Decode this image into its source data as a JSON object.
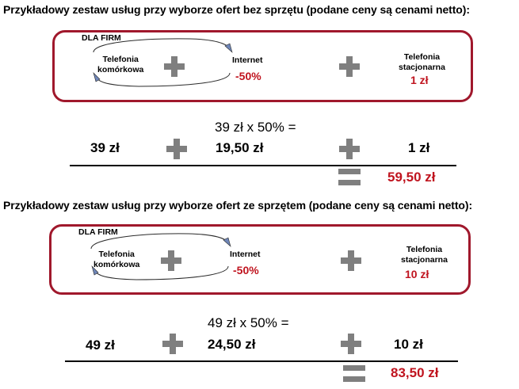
{
  "sections": [
    {
      "heading": "Przykładowy zestaw usług przy wyborze ofert bez sprzętu (podane ceny są cenami netto):",
      "badge": "DLA FIRM",
      "mobile_label_1": "Telefonia",
      "mobile_label_2": "komórkowa",
      "internet_label": "Internet",
      "internet_discount": "-50%",
      "landline_label_1": "Telefonia",
      "landline_label_2": "stacjonarna",
      "landline_price": "1 zł",
      "mobile_price": "39 zł",
      "formula": "39 zł x 50% =",
      "internet_price": "19,50 zł",
      "landline_total_price": "1 zł",
      "total": "59,50 zł"
    },
    {
      "heading": "Przykładowy zestaw usług przy wyborze ofert ze sprzętem (podane ceny są cenami netto):",
      "badge": "DLA FIRM",
      "mobile_label_1": "Telefonia",
      "mobile_label_2": "komórkowa",
      "internet_label": "Internet",
      "internet_discount": "-50%",
      "landline_label_1": "Telefonia",
      "landline_label_2": "stacjonarna",
      "landline_price": "10 zł",
      "mobile_price": "49 zł",
      "formula": "49 zł x 50% =",
      "internet_price": "24,50 zł",
      "landline_total_price": "10 zł",
      "total": "83,50 zł"
    }
  ],
  "colors": {
    "accent_red": "#c0141f",
    "box_border": "#a0182c",
    "icon_gray": "#7f7f7f",
    "arc_blue": "#6f86b8"
  },
  "icons": {
    "plus": "plus-icon",
    "equals": "equals-icon",
    "arc": "curved-arrow-icon"
  }
}
